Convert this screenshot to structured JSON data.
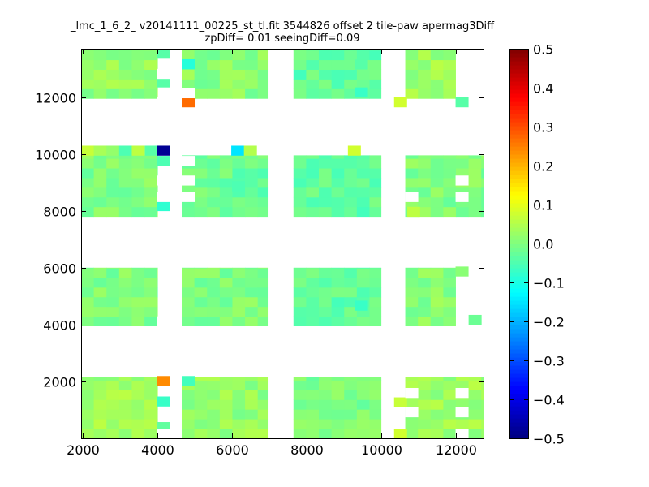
{
  "chart_data": {
    "type": "heatmap",
    "title": "_lmc_1_6_2_ v20141111_00225_st_tl.fit 3544826 offset 2 tile-paw apermag3Diff",
    "subtitle": "zpDiff= 0.01 seeingDiff=0.09",
    "xlabel": "",
    "ylabel": "",
    "xlim": [
      1950,
      12750
    ],
    "ylim": [
      0,
      13700
    ],
    "x_ticks": [
      2000,
      4000,
      6000,
      8000,
      10000,
      12000
    ],
    "y_ticks": [
      2000,
      4000,
      6000,
      8000,
      10000,
      12000
    ],
    "colorbar": {
      "min": -0.5,
      "max": 0.5,
      "ticks": [
        -0.5,
        -0.4,
        -0.3,
        -0.2,
        -0.1,
        0.0,
        0.1,
        0.2,
        0.3,
        0.4,
        0.5
      ],
      "tick_labels": [
        "−0.5",
        "−0.4",
        "−0.3",
        "−0.2",
        "−0.1",
        "0.0",
        "0.1",
        "0.2",
        "0.3",
        "0.4",
        "0.5"
      ],
      "colormap": "jet"
    },
    "cell_size": [
      340,
      340
    ],
    "blocks": [
      {
        "x0": 1950,
        "x1": 4000,
        "y0": 11950,
        "y1": 13700,
        "base": 0.02
      },
      {
        "x0": 4650,
        "x1": 6950,
        "y0": 11950,
        "y1": 13700,
        "base": 0.01
      },
      {
        "x0": 7650,
        "x1": 10000,
        "y0": 11950,
        "y1": 13700,
        "base": -0.03
      },
      {
        "x0": 10650,
        "x1": 12000,
        "y0": 11950,
        "y1": 13700,
        "base": 0.03
      },
      {
        "x0": 1950,
        "x1": 4000,
        "y0": 7800,
        "y1": 9950,
        "base": 0.0
      },
      {
        "x0": 4650,
        "x1": 6950,
        "y0": 7800,
        "y1": 9950,
        "base": -0.02
      },
      {
        "x0": 7650,
        "x1": 10000,
        "y0": 7800,
        "y1": 9950,
        "base": -0.03
      },
      {
        "x0": 10650,
        "x1": 12750,
        "y0": 7800,
        "y1": 9950,
        "base": 0.0
      },
      {
        "x0": 1950,
        "x1": 4000,
        "y0": 3950,
        "y1": 6000,
        "base": 0.0
      },
      {
        "x0": 4650,
        "x1": 6950,
        "y0": 3950,
        "y1": 6000,
        "base": 0.0
      },
      {
        "x0": 7650,
        "x1": 10000,
        "y0": 3950,
        "y1": 6000,
        "base": -0.03
      },
      {
        "x0": 10650,
        "x1": 12000,
        "y0": 3950,
        "y1": 6000,
        "base": 0.01
      },
      {
        "x0": 1950,
        "x1": 4000,
        "y0": 0,
        "y1": 2150,
        "base": 0.03
      },
      {
        "x0": 4650,
        "x1": 6950,
        "y0": 0,
        "y1": 2150,
        "base": 0.02
      },
      {
        "x0": 7650,
        "x1": 10000,
        "y0": 0,
        "y1": 2150,
        "base": 0.0
      },
      {
        "x0": 10650,
        "x1": 12750,
        "y0": 0,
        "y1": 2150,
        "base": 0.03
      }
    ],
    "special_cells": [
      {
        "x": 1950,
        "y": 9950,
        "value": 0.07
      },
      {
        "x": 2290,
        "y": 9950,
        "value": 0.04
      },
      {
        "x": 2630,
        "y": 9950,
        "value": 0.02
      },
      {
        "x": 2970,
        "y": 9950,
        "value": -0.05
      },
      {
        "x": 3310,
        "y": 9950,
        "value": 0.06
      },
      {
        "x": 3660,
        "y": 9950,
        "value": -0.04
      },
      {
        "x": 3990,
        "y": 9950,
        "value": -0.48
      },
      {
        "x": 5980,
        "y": 9950,
        "value": -0.15
      },
      {
        "x": 6320,
        "y": 9950,
        "value": 0.05
      },
      {
        "x": 9110,
        "y": 9950,
        "value": 0.08
      },
      {
        "x": 4650,
        "y": 11650,
        "value": 0.27
      },
      {
        "x": 3990,
        "y": 1850,
        "value": 0.24
      },
      {
        "x": 3990,
        "y": 8000,
        "value": -0.08
      },
      {
        "x": 3990,
        "y": 12350,
        "value": -0.04
      },
      {
        "x": 3990,
        "y": 13360,
        "value": -0.04
      },
      {
        "x": 3990,
        "y": 9590,
        "value": -0.05
      },
      {
        "x": 3990,
        "y": 1130,
        "value": -0.07
      },
      {
        "x": 3990,
        "y": 230,
        "value": -0.03
      },
      {
        "x": 4650,
        "y": 12990,
        "value": -0.09
      },
      {
        "x": 4650,
        "y": 1850,
        "value": -0.06
      },
      {
        "x": 6000,
        "y": 8700,
        "value": -0.05
      },
      {
        "x": 9300,
        "y": 12000,
        "value": -0.07
      },
      {
        "x": 9300,
        "y": 4500,
        "value": -0.07
      },
      {
        "x": 9300,
        "y": 12980,
        "value": -0.04
      },
      {
        "x": 10350,
        "y": 11650,
        "value": 0.08
      },
      {
        "x": 10350,
        "y": 1100,
        "value": 0.07
      },
      {
        "x": 10350,
        "y": 0,
        "value": 0.08
      },
      {
        "x": 10700,
        "y": 7800,
        "value": 0.06
      },
      {
        "x": 12350,
        "y": 4000,
        "value": -0.02
      },
      {
        "x": 12000,
        "y": 5700,
        "value": 0.01
      },
      {
        "x": 12000,
        "y": 11650,
        "value": -0.04
      }
    ],
    "blank_cells": [
      {
        "x": 3990,
        "y": 12650
      },
      {
        "x": 3990,
        "y": 11650
      },
      {
        "x": 3990,
        "y": 8900
      },
      {
        "x": 3990,
        "y": 8320
      },
      {
        "x": 3990,
        "y": 6020
      },
      {
        "x": 3990,
        "y": 3950
      },
      {
        "x": 3990,
        "y": 0
      },
      {
        "x": 4650,
        "y": 11970
      },
      {
        "x": 4650,
        "y": 8320
      },
      {
        "x": 4650,
        "y": 9590
      },
      {
        "x": 4650,
        "y": 8900
      },
      {
        "x": 10650,
        "y": 8320
      },
      {
        "x": 10650,
        "y": 1430
      },
      {
        "x": 10650,
        "y": 750
      },
      {
        "x": 12000,
        "y": 8320
      },
      {
        "x": 12000,
        "y": 8900
      },
      {
        "x": 12000,
        "y": 1430
      },
      {
        "x": 12000,
        "y": 750
      },
      {
        "x": 12000,
        "y": 0
      }
    ]
  }
}
